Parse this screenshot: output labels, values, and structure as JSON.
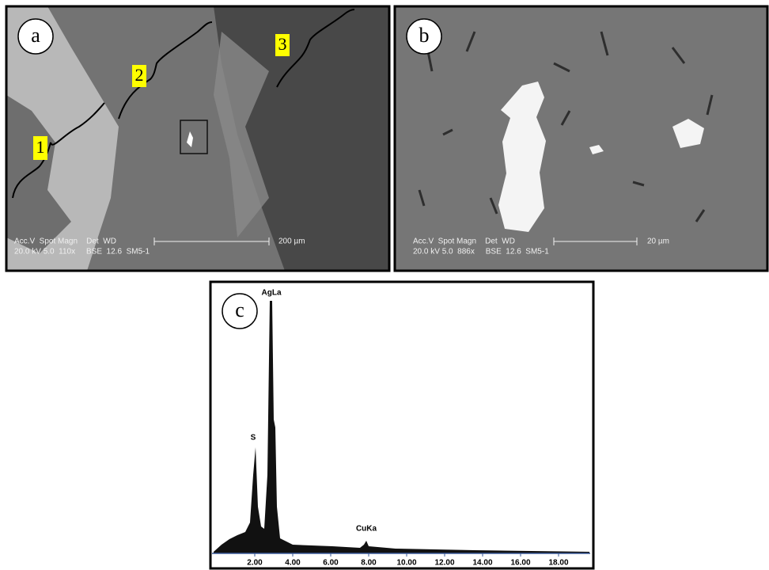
{
  "panels": [
    {
      "label": "a",
      "scale_header": "Acc.V  Spot Magn    Det  WD",
      "scale_values": "20.0 kV 5.0  110x     BSE  12.6  SM5-1",
      "scale_bar": "200 µm",
      "zones": [
        "1",
        "2",
        "3"
      ]
    },
    {
      "label": "b",
      "scale_header": "Acc.V  Spot Magn    Det  WD",
      "scale_values": "20.0 kV 5.0  886x     BSE  12.6  SM5-1",
      "scale_bar": "20 µm"
    },
    {
      "label": "c",
      "peaks": [
        "S",
        "AgLa",
        "CuKa"
      ],
      "x_ticks": [
        "2.00",
        "4.00",
        "6.00",
        "8.00",
        "10.00",
        "12.00",
        "14.00",
        "16.00",
        "18.00"
      ]
    }
  ]
}
